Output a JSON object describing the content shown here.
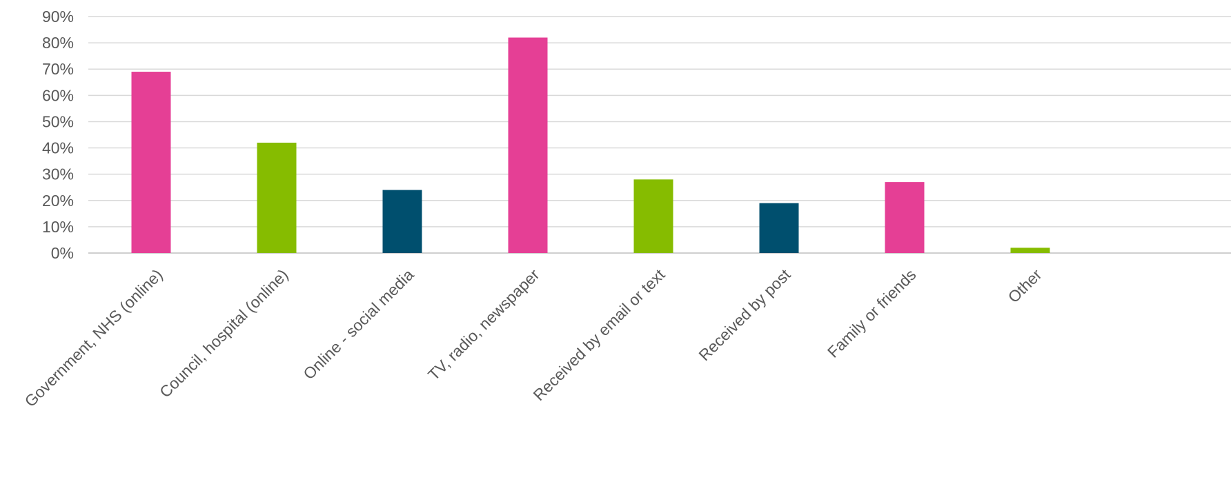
{
  "chart_data": {
    "type": "bar",
    "title": "",
    "xlabel": "",
    "ylabel": "",
    "ylim": [
      0,
      90
    ],
    "y_ticks": [
      "0%",
      "10%",
      "20%",
      "30%",
      "40%",
      "50%",
      "60%",
      "70%",
      "80%",
      "90%"
    ],
    "y_tick_values": [
      0,
      10,
      20,
      30,
      40,
      50,
      60,
      70,
      80,
      90
    ],
    "grid": true,
    "legend": "none",
    "categories": [
      "Government, NHS (online)",
      "Council, hospital (online)",
      "Online - social media",
      "TV, radio, newspaper",
      "Received by email or text",
      "Received by post",
      "Family or friends",
      "Other"
    ],
    "values": [
      69,
      42,
      24,
      82,
      28,
      19,
      27,
      2
    ],
    "unit": "%",
    "bar_colors": [
      "#e53f95",
      "#86bc00",
      "#004f6e",
      "#e53f95",
      "#86bc00",
      "#004f6e",
      "#e53f95",
      "#86bc00"
    ]
  }
}
